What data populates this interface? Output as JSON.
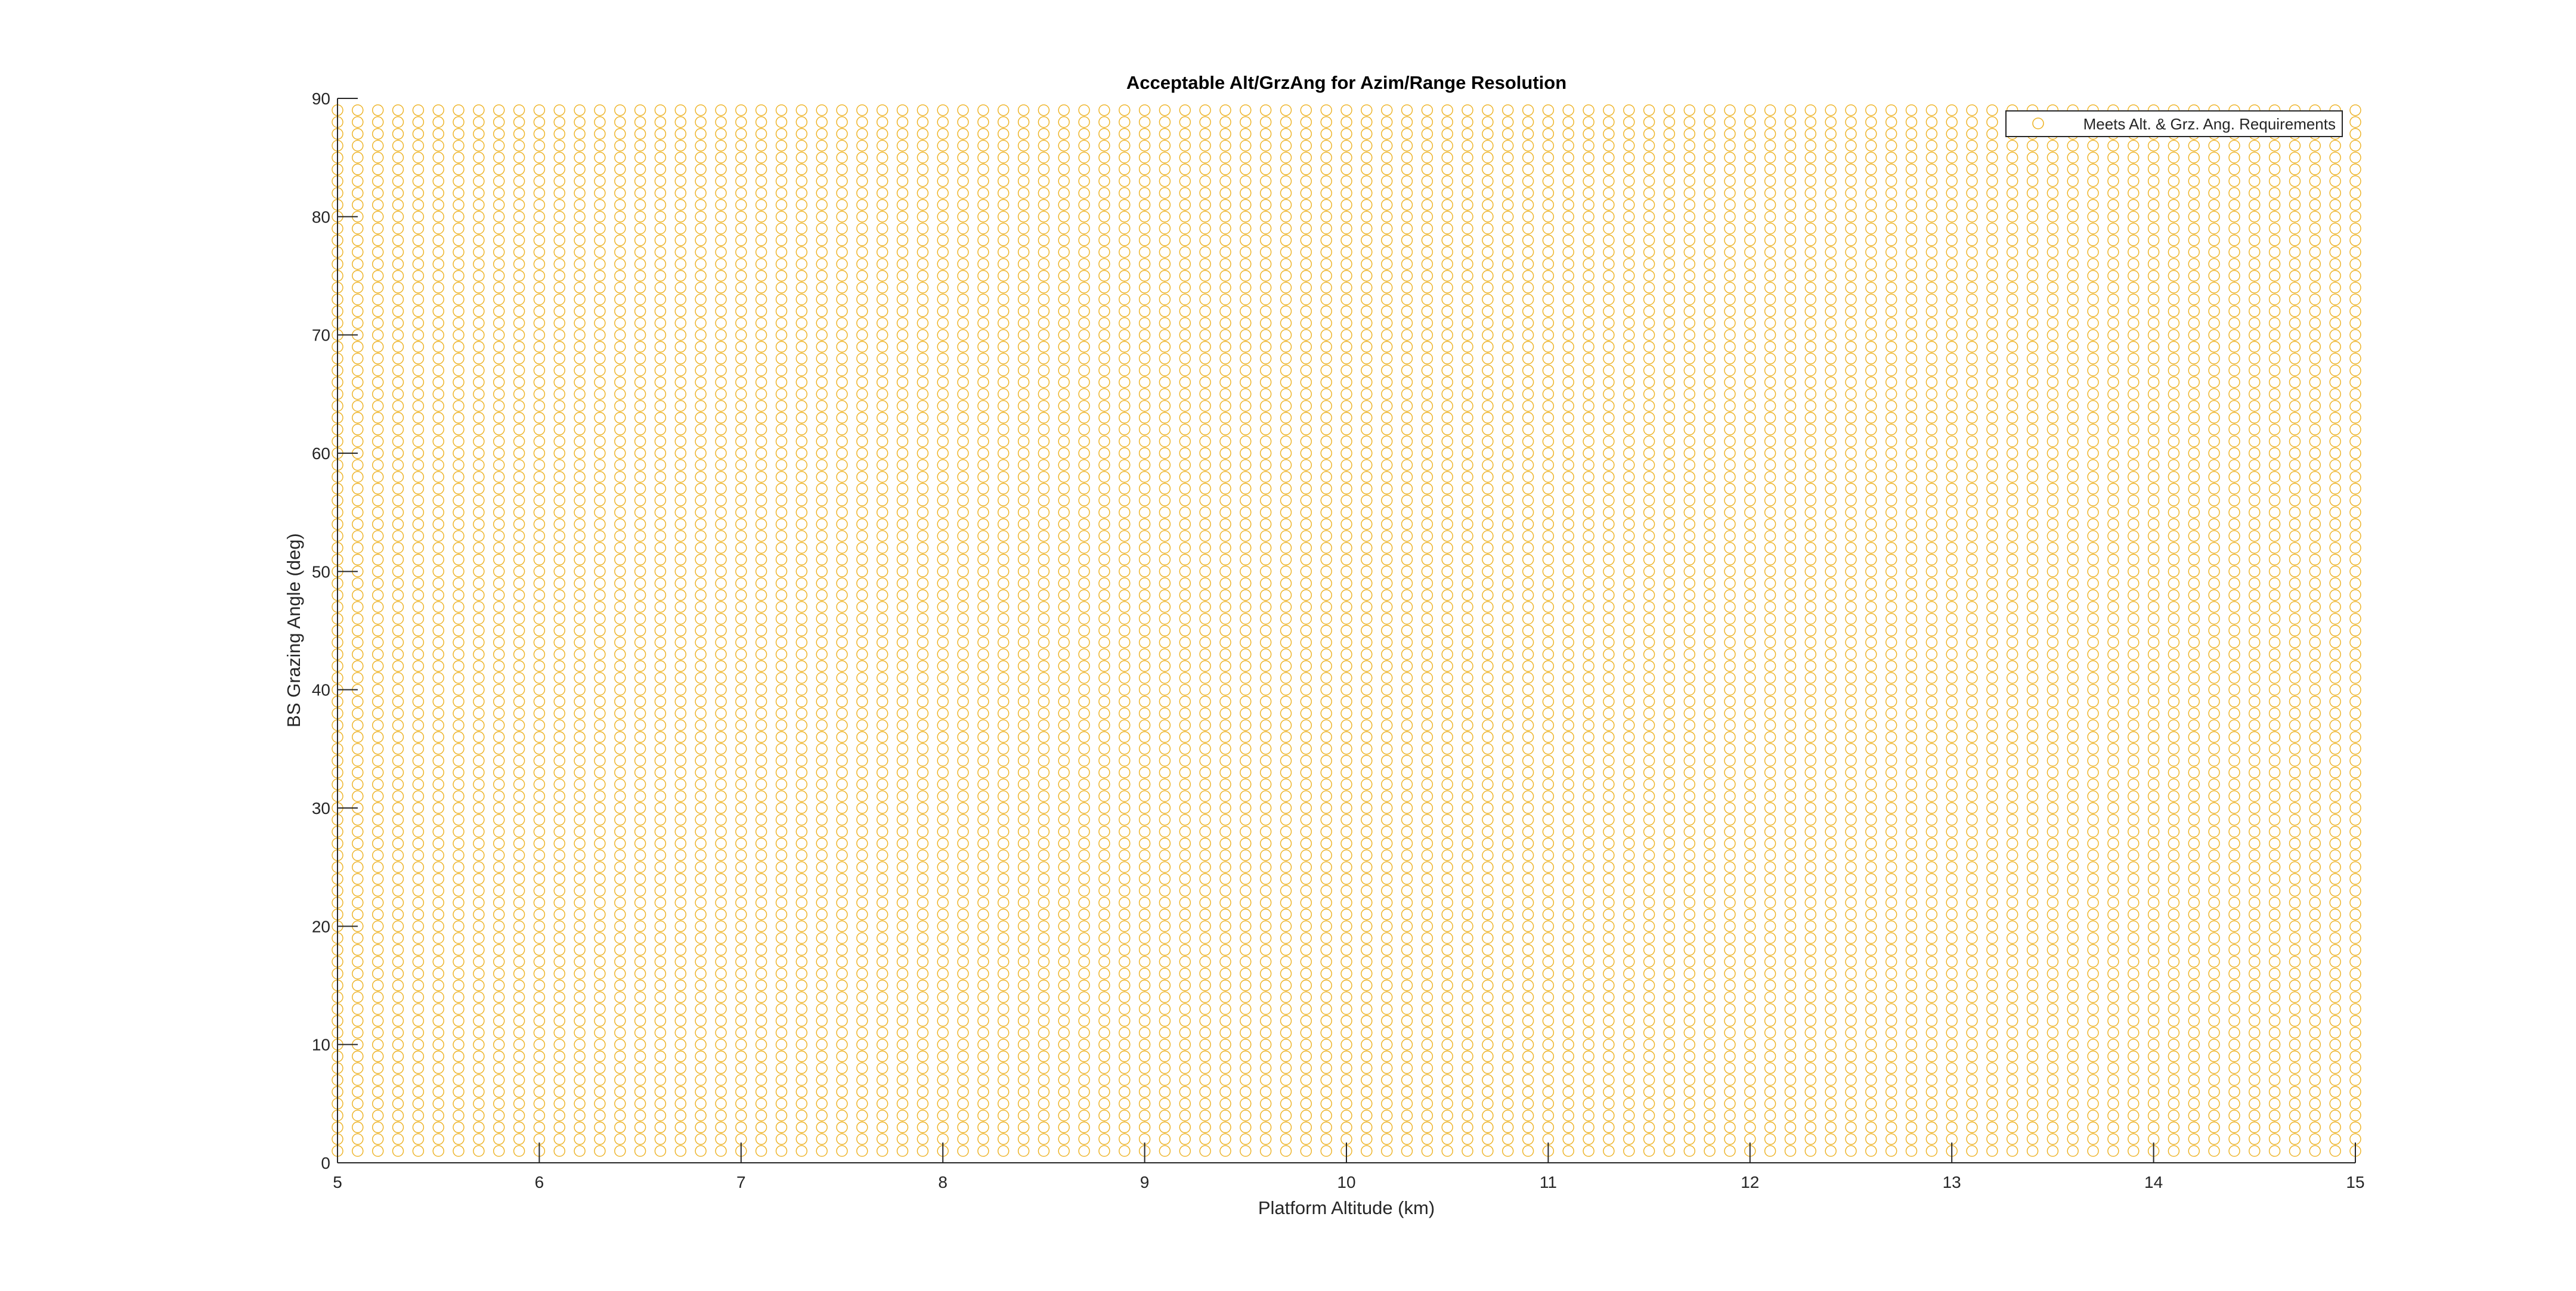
{
  "chart_data": {
    "type": "scatter",
    "title": "Acceptable Alt/GrzAng for Azim/Range Resolution",
    "xlabel": "Platform Altitude (km)",
    "ylabel": "BS Grazing Angle (deg)",
    "xlim": [
      5,
      15
    ],
    "ylim": [
      0,
      90
    ],
    "xticks": [
      "5",
      "6",
      "7",
      "8",
      "9",
      "10",
      "11",
      "12",
      "13",
      "14",
      "15"
    ],
    "yticks": [
      "0",
      "10",
      "20",
      "30",
      "40",
      "50",
      "60",
      "70",
      "80",
      "90"
    ],
    "grid": false,
    "legend_position": "top-right",
    "marker": "circle-open",
    "series": [
      {
        "name": "Meets Alt. & Grz. Ang. Requirements",
        "color": "#EDB120",
        "x": {
          "start": 5,
          "stop": 15,
          "step": 0.1
        },
        "y": {
          "start": 1,
          "stop": 89,
          "step": 1
        }
      }
    ]
  }
}
